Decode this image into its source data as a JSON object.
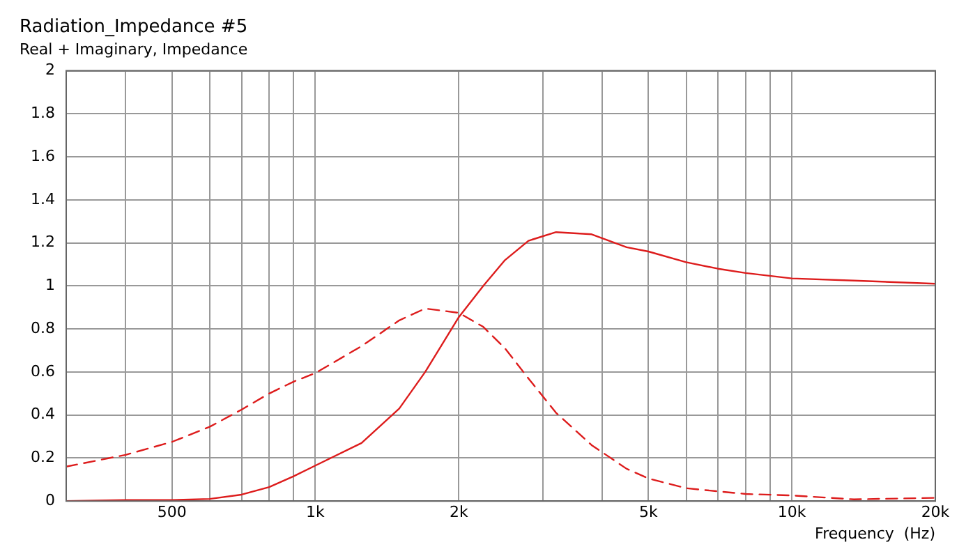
{
  "chart_data": {
    "type": "line",
    "title": "Radiation_Impedance #5",
    "subtitle": "Real + Imaginary, Impedance",
    "xlabel": "Frequency  (Hz)",
    "log": "x",
    "grid": true,
    "legend": false,
    "marker": "none",
    "xlim": [
      300,
      20000
    ],
    "xticks": [
      {
        "value": 300,
        "label": null
      },
      {
        "value": 400,
        "label": null
      },
      500,
      {
        "value": 600,
        "label": null
      },
      {
        "value": 700,
        "label": null
      },
      {
        "value": 800,
        "label": null
      },
      {
        "value": 900,
        "label": null
      },
      {
        "value": 1000,
        "label": "1k"
      },
      {
        "value": 2000,
        "label": "2k"
      },
      {
        "value": 3000,
        "label": null
      },
      {
        "value": 4000,
        "label": null
      },
      {
        "value": 5000,
        "label": "5k"
      },
      {
        "value": 6000,
        "label": null
      },
      {
        "value": 7000,
        "label": null
      },
      {
        "value": 8000,
        "label": null
      },
      {
        "value": 9000,
        "label": null
      },
      {
        "value": 10000,
        "label": "10k"
      },
      {
        "value": 20000,
        "label": "20k"
      }
    ],
    "ylim": [
      0,
      2
    ],
    "yticks": [
      0,
      0.2,
      0.4,
      0.6,
      0.8,
      1,
      1.2,
      1.4,
      1.6,
      1.8,
      2
    ],
    "x": [
      300,
      400,
      500,
      600,
      700,
      800,
      900,
      1000,
      1250,
      1500,
      1700,
      2000,
      2250,
      2500,
      2800,
      3200,
      3800,
      4500,
      5000,
      6000,
      7000,
      8000,
      10000,
      13500,
      20000
    ],
    "series": [
      {
        "color": "#dd1c1c",
        "line_style": "solid",
        "values": [
          0,
          0.005,
          0.005,
          0.01,
          0.03,
          0.065,
          0.115,
          0.165,
          0.27,
          0.43,
          0.6,
          0.855,
          1.0,
          1.12,
          1.21,
          1.25,
          1.24,
          1.18,
          1.16,
          1.11,
          1.08,
          1.06,
          1.035,
          1.025,
          1.01
        ]
      },
      {
        "color": "#dd1c1c",
        "line_style": "dashed",
        "values": [
          0.16,
          0.215,
          0.275,
          0.345,
          0.425,
          0.5,
          0.555,
          0.595,
          0.72,
          0.84,
          0.895,
          0.875,
          0.81,
          0.71,
          0.57,
          0.41,
          0.26,
          0.15,
          0.105,
          0.06,
          0.045,
          0.033,
          0.026,
          0.008,
          0.015
        ]
      }
    ]
  }
}
